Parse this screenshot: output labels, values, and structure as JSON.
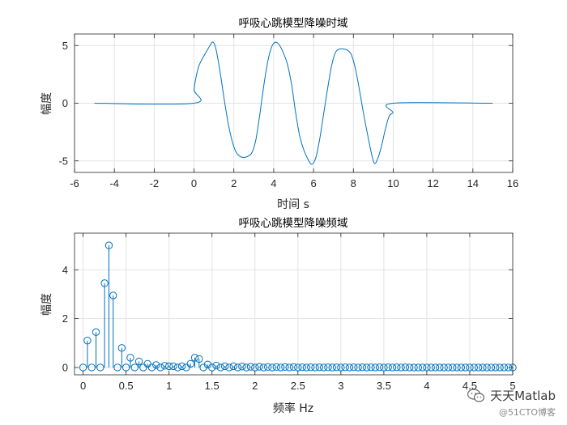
{
  "chart_data": [
    {
      "type": "line",
      "title": "呼吸心跳模型降噪时域",
      "xlabel": "时间 s",
      "ylabel": "幅度",
      "xlim": [
        -6,
        16
      ],
      "ylim": [
        -6,
        6
      ],
      "xticks": [
        "-6",
        "-4",
        "-2",
        "0",
        "2",
        "4",
        "6",
        "8",
        "10",
        "12",
        "14",
        "16"
      ],
      "yticks": [
        "-5",
        "0",
        "5"
      ],
      "grid": true,
      "color": "#0072BD",
      "series": [
        {
          "x": [
            -5,
            -0.01,
            0,
            0.2,
            0.4,
            0.6,
            0.8,
            0.95,
            1.1,
            1.3,
            1.5,
            1.7,
            1.9,
            2.1,
            2.3,
            2.5,
            2.7,
            2.9,
            3.1,
            3.3,
            3.5,
            3.7,
            3.9,
            4.1,
            4.3,
            4.5,
            4.7,
            4.9,
            5.1,
            5.3,
            5.5,
            5.7,
            5.9,
            6.1,
            6.3,
            6.5,
            6.7,
            6.9,
            7.1,
            7.3,
            7.5,
            7.7,
            7.9,
            8.1,
            8.3,
            8.5,
            8.7,
            8.9,
            9.05,
            9.2,
            9.4,
            9.6,
            9.8,
            9.99,
            10,
            15
          ],
          "y": [
            0,
            0,
            1.2,
            3.0,
            3.8,
            4.4,
            5.0,
            5.3,
            4.7,
            2.8,
            0.5,
            -1.6,
            -3.2,
            -4.2,
            -4.6,
            -4.7,
            -4.6,
            -4.3,
            -3.2,
            -1.0,
            1.5,
            3.6,
            4.9,
            5.3,
            5.0,
            4.3,
            3.3,
            1.6,
            -0.8,
            -2.8,
            -4.0,
            -4.8,
            -5.3,
            -4.8,
            -3.2,
            -1.0,
            1.2,
            3.2,
            4.4,
            4.7,
            4.7,
            4.6,
            4.2,
            3.0,
            1.2,
            -0.8,
            -2.6,
            -4.3,
            -5.2,
            -4.9,
            -3.8,
            -2.3,
            -1.1,
            -0.8,
            0,
            0
          ]
        }
      ]
    },
    {
      "type": "stem",
      "title": "呼吸心跳模型降噪频域",
      "xlabel": "频率 Hz",
      "ylabel": "幅度",
      "xlim": [
        -0.1,
        5
      ],
      "ylim": [
        -0.3,
        5.5
      ],
      "xticks": [
        "0",
        "0.5",
        "1",
        "1.5",
        "2",
        "2.5",
        "3",
        "3.5",
        "4",
        "4.5",
        "5"
      ],
      "yticks": [
        "0",
        "2",
        "4"
      ],
      "grid": true,
      "color": "#0072BD",
      "series": [
        {
          "x_start": 0,
          "x_step": 0.05,
          "values": [
            0.0,
            1.1,
            0.0,
            1.45,
            0.0,
            3.45,
            5.0,
            2.95,
            0.0,
            0.8,
            0.0,
            0.4,
            0.0,
            0.25,
            0.0,
            0.15,
            0.0,
            0.1,
            0.0,
            0.07,
            0.05,
            0.05,
            0.0,
            0.05,
            0.0,
            0.15,
            0.4,
            0.35,
            0.0,
            0.12,
            0.0,
            0.08,
            0.0,
            0.05,
            0.0,
            0.05,
            0.0,
            0.04,
            0.0,
            0.03,
            0.0,
            0.03,
            0.0,
            0.02,
            0.0,
            0.02,
            0.0,
            0.02,
            0.0,
            0.02,
            0.0,
            0.01,
            0.0,
            0.01,
            0.0,
            0.01,
            0.0,
            0.01,
            0.0,
            0.01,
            0.0,
            0.01,
            0.0,
            0.01,
            0.0,
            0.01,
            0.0,
            0.01,
            0.0,
            0.01,
            0.0,
            0.01,
            0.0,
            0.01,
            0.0,
            0.01,
            0.0,
            0.0,
            0.0,
            0.0,
            0.0,
            0.0,
            0.0,
            0.0,
            0.0,
            0.0,
            0.0,
            0.0,
            0.0,
            0.0,
            0.0,
            0.0,
            0.0,
            0.0,
            0.0,
            0.0,
            0.0,
            0.0,
            0.0,
            0.0,
            0.0
          ]
        }
      ]
    }
  ],
  "watermark": {
    "line1": "天天Matlab",
    "line2": "@51CTO博客",
    "icon": "wechat-icon"
  }
}
